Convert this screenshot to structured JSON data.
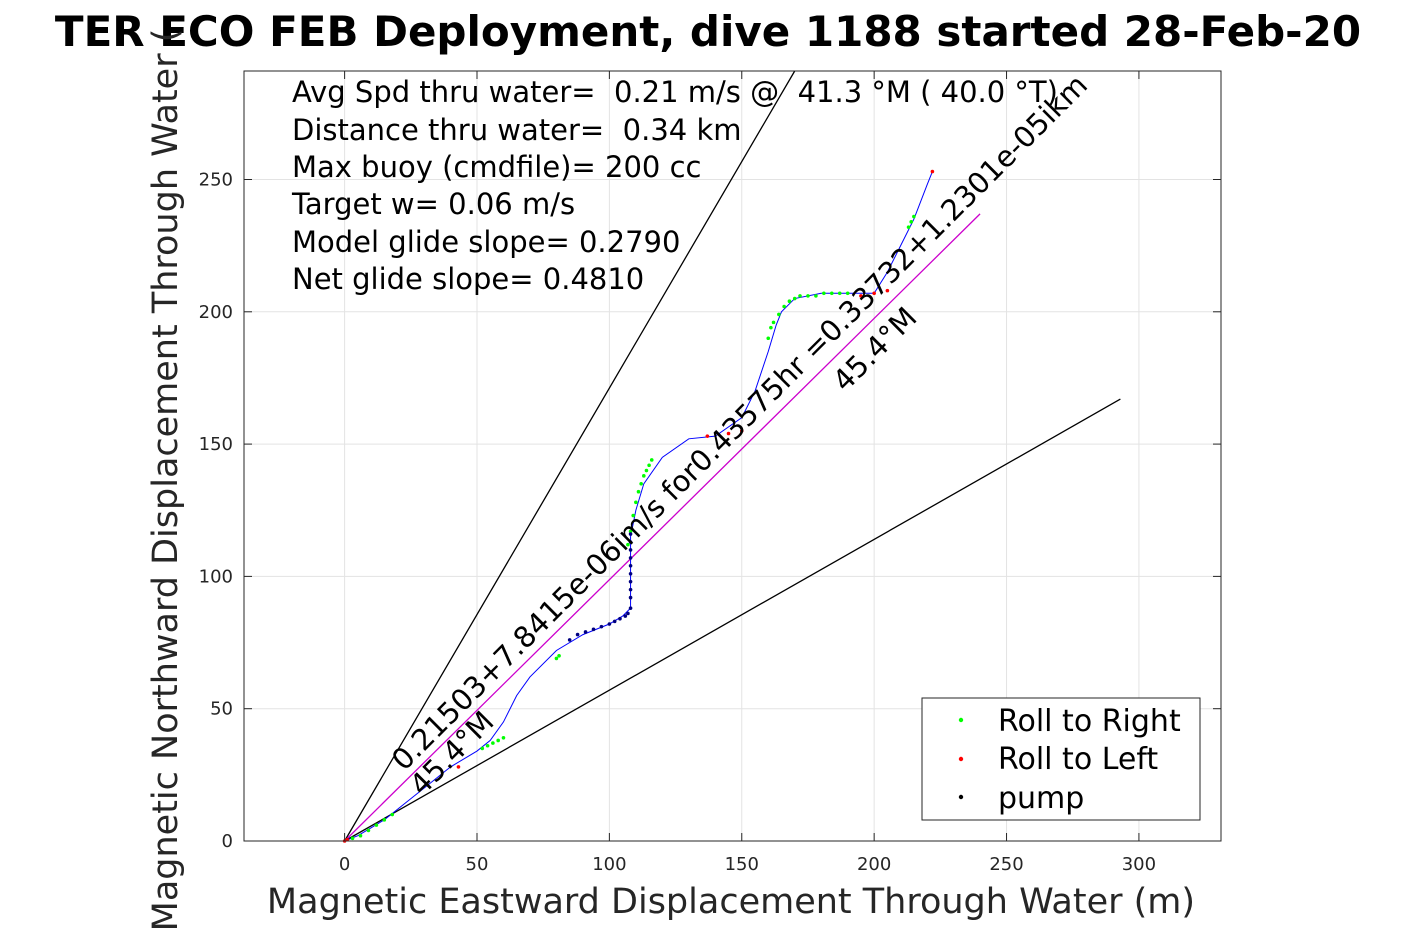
{
  "chart_data": {
    "type": "scatter",
    "title": "TER ECO FEB Deployment, dive 1188 started 28-Feb-20",
    "xlabel": "Magnetic Eastward Displacement Through Water (m)",
    "ylabel": "Magnetic Northward Displacement Through Water (",
    "xlim": [
      -38,
      331
    ],
    "ylim": [
      0,
      291
    ],
    "xticks": [
      0,
      50,
      100,
      150,
      200,
      250,
      300
    ],
    "yticks": [
      0,
      50,
      100,
      150,
      200,
      250
    ],
    "grid": true,
    "legend_position": "bottom-right",
    "annotations": [
      "Avg Spd thru water=  0.21 m/s @  41.3 °M ( 40.0 °T)",
      "Distance thru water=  0.34 km",
      "Max buoy (cmdfile)= 200 cc",
      "Target w= 0.06 m/s",
      "Model glide slope= 0.2790",
      "Net glide slope= 0.4810"
    ],
    "heading_label_low": "45.4°M",
    "heading_label_high": "45.4°M",
    "fit_label": "0.21503+7.8415e-06im/s for0.43575hr =0.33732+1.2301e-05ikm",
    "series": [
      {
        "name": "track",
        "color": "#0000ff",
        "x": [
          0,
          5,
          10,
          15,
          20,
          30,
          40,
          50,
          55,
          60,
          65,
          70,
          80,
          90,
          100,
          105,
          108,
          108,
          108,
          110,
          113,
          120,
          130,
          140,
          150,
          155,
          160,
          163,
          165,
          170,
          180,
          190,
          200,
          205,
          210,
          215,
          220,
          222
        ],
        "y": [
          0,
          2,
          5,
          8,
          12,
          20,
          28,
          34,
          38,
          45,
          55,
          62,
          72,
          78,
          82,
          85,
          88,
          100,
          115,
          125,
          135,
          145,
          152,
          153,
          160,
          170,
          185,
          195,
          200,
          205,
          207,
          207,
          207,
          215,
          225,
          235,
          248,
          253
        ]
      },
      {
        "name": "Roll to Right",
        "color": "#00ff00",
        "x": [
          3,
          6,
          9,
          12,
          15,
          18,
          52,
          54,
          56,
          58,
          60,
          80,
          81,
          107,
          108,
          109,
          110,
          111,
          112,
          113,
          114,
          115,
          116,
          160,
          161,
          162,
          164,
          166,
          168,
          170,
          172,
          175,
          178,
          181,
          184,
          187,
          190,
          213,
          214,
          215
        ],
        "y": [
          1,
          2,
          4,
          6,
          8,
          10,
          35,
          36,
          37,
          38,
          39,
          69,
          70,
          112,
          117,
          123,
          128,
          132,
          135,
          138,
          140,
          142,
          144,
          190,
          194,
          196,
          199,
          202,
          204,
          205,
          206,
          206,
          206,
          207,
          207,
          207,
          207,
          232,
          234,
          236
        ]
      },
      {
        "name": "Roll to Left",
        "color": "#ff0000",
        "x": [
          0,
          1,
          43,
          137,
          145,
          150,
          195,
          200,
          205,
          222
        ],
        "y": [
          0,
          0.5,
          28,
          153,
          154,
          155,
          206,
          207,
          208,
          253
        ]
      },
      {
        "name": "pump",
        "color": "#000080",
        "x": [
          85,
          88,
          91,
          94,
          97,
          100,
          102,
          104,
          106,
          107,
          108,
          108,
          108,
          108,
          108,
          108,
          108,
          108,
          108,
          108
        ],
        "y": [
          76,
          78,
          79,
          80,
          81,
          82,
          83,
          84,
          85,
          86,
          88,
          92,
          95,
          98,
          101,
          104,
          107,
          110,
          113,
          116
        ]
      }
    ],
    "lines": [
      {
        "name": "upper bound",
        "color": "#000000",
        "x": [
          0,
          170
        ],
        "y": [
          0,
          291
        ]
      },
      {
        "name": "lower bound",
        "color": "#000000",
        "x": [
          0,
          293
        ],
        "y": [
          0,
          167
        ]
      },
      {
        "name": "net heading",
        "color": "#cc00cc",
        "x": [
          0,
          240
        ],
        "y": [
          0,
          237
        ]
      }
    ],
    "legend": [
      {
        "label": "Roll to Right",
        "color": "#00ff00"
      },
      {
        "label": "Roll to Left",
        "color": "#ff0000"
      },
      {
        "label": "pump",
        "color": "#000000"
      }
    ]
  }
}
